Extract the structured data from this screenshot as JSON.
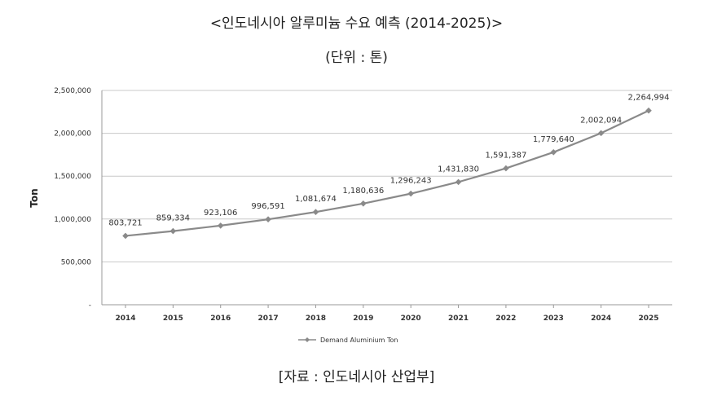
{
  "header": {
    "title": "<인도네시아 알루미늄 수요 예측 (2014-2025)>",
    "subtitle": "(단위 : 톤)"
  },
  "footer": {
    "source": "[자료 : 인도네시아 산업부]"
  },
  "colors": {
    "line": "#8a8a8a",
    "grid": "#c8c8c8",
    "axis": "#999999"
  },
  "chart_data": {
    "type": "line",
    "title": "",
    "xlabel": "",
    "ylabel": "Ton",
    "ylim": [
      0,
      2500000
    ],
    "grid": true,
    "legend_position": "bottom",
    "categories": [
      "2014",
      "2015",
      "2016",
      "2017",
      "2018",
      "2019",
      "2020",
      "2021",
      "2022",
      "2023",
      "2024",
      "2025"
    ],
    "series": [
      {
        "name": "Demand Aluminium Ton",
        "values": [
          803721,
          859334,
          923106,
          996591,
          1081674,
          1180636,
          1296243,
          1431830,
          1591387,
          1779640,
          2002094,
          2264994
        ],
        "labels": [
          "803,721",
          "859,334",
          "923,106",
          "996,591",
          "1,081,674",
          "1,180,636",
          "1,296,243",
          "1,431,830",
          "1,591,387",
          "1,779,640",
          "2,002,094",
          "2,264,994"
        ]
      }
    ],
    "yticks": [
      {
        "value": 0,
        "label": "-"
      },
      {
        "value": 500000,
        "label": "500,000"
      },
      {
        "value": 1000000,
        "label": "1,000,000"
      },
      {
        "value": 1500000,
        "label": "1,500,000"
      },
      {
        "value": 2000000,
        "label": "2,000,000"
      },
      {
        "value": 2500000,
        "label": "2,500,000"
      }
    ]
  }
}
